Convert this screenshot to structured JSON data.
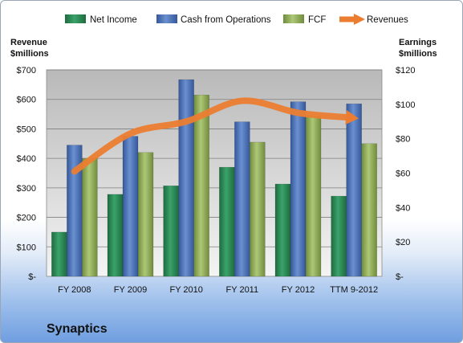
{
  "chart_data": {
    "type": "bar",
    "title": "Synaptics",
    "categories": [
      "FY 2008",
      "FY 2009",
      "FY 2010",
      "FY 2011",
      "FY 2012",
      "TTM 9-2012"
    ],
    "left_axis": {
      "label_line1": "Revenue",
      "label_line2": "$millions",
      "ylim": [
        0,
        700
      ],
      "ticks": [
        0,
        100,
        200,
        300,
        400,
        500,
        600,
        700
      ],
      "tick_labels": [
        "$-",
        "$100",
        "$200",
        "$300",
        "$400",
        "$500",
        "$600",
        "$700"
      ]
    },
    "right_axis": {
      "label_line1": "Earnings",
      "label_line2": "$millions",
      "ylim": [
        0,
        120
      ],
      "ticks": [
        0,
        20,
        40,
        60,
        80,
        100,
        120
      ],
      "tick_labels": [
        "$-",
        "$20",
        "$40",
        "$60",
        "$80",
        "$100",
        "$120"
      ]
    },
    "series": [
      {
        "name": "Net Income",
        "kind": "bar",
        "axis": "left",
        "color": "#2e8b57",
        "values": [
          150,
          278,
          307,
          370,
          313,
          272
        ]
      },
      {
        "name": "Cash from Operations",
        "kind": "bar",
        "axis": "left",
        "color": "#4f76b8",
        "values": [
          445,
          475,
          667,
          524,
          592,
          585
        ]
      },
      {
        "name": "FCF",
        "kind": "bar",
        "axis": "left",
        "color": "#93b35a",
        "values": [
          400,
          420,
          615,
          455,
          545,
          450
        ]
      },
      {
        "name": "Revenues",
        "kind": "line",
        "axis": "right",
        "color": "#ec7d30",
        "values": [
          61,
          83,
          90,
          102,
          95,
          92
        ]
      }
    ],
    "legend_position": "top",
    "grid": true
  }
}
